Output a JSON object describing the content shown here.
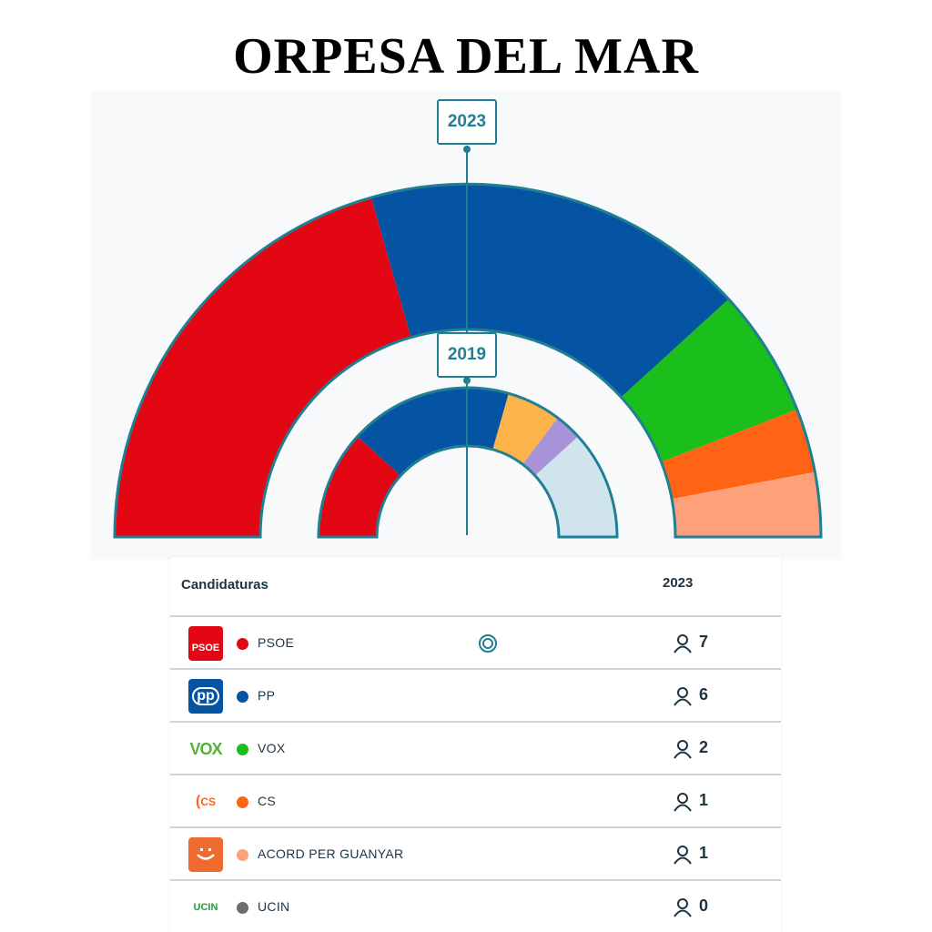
{
  "title": "ORPESA DEL MAR",
  "chart_data": [
    {
      "type": "pie",
      "label": "2023",
      "categories": [
        "PSOE",
        "PP",
        "VOX",
        "CS",
        "ACORD PER GUANYAR"
      ],
      "values": [
        7,
        6,
        2,
        1,
        1
      ],
      "colors": [
        "#e30613",
        "#0454a3",
        "#1bbf1b",
        "#ff6314",
        "#fea17a"
      ]
    },
    {
      "type": "pie",
      "label": "2019",
      "categories": [
        "PSOE",
        "PP",
        "CS",
        "",
        ""
      ],
      "values": [
        4,
        6,
        2,
        1,
        4
      ],
      "colors": [
        "#e30613",
        "#0454a3",
        "#fcb44a",
        "#a892d8",
        "#cfe4ec"
      ]
    }
  ],
  "table": {
    "header": {
      "candidaturas": "Candidaturas",
      "year": "2023"
    },
    "rows": [
      {
        "logo_text": "PSOE",
        "name": "PSOE",
        "seats": "7",
        "color": "#e30613",
        "winner": true
      },
      {
        "logo_text": "pp",
        "name": "PP",
        "seats": "6",
        "color": "#0454a3",
        "winner": false
      },
      {
        "logo_text": "VOX",
        "name": "VOX",
        "seats": "2",
        "color": "#1bbf1b",
        "winner": false
      },
      {
        "logo_text": "CS",
        "name": "CS",
        "seats": "1",
        "color": "#ff6314",
        "winner": false
      },
      {
        "logo_text": "",
        "name": "ACORD PER GUANYAR",
        "seats": "1",
        "color": "#fea17a",
        "winner": false
      },
      {
        "logo_text": "UCIN",
        "name": "UCIN",
        "seats": "0",
        "color": "#6d6d6d",
        "winner": false
      }
    ]
  }
}
